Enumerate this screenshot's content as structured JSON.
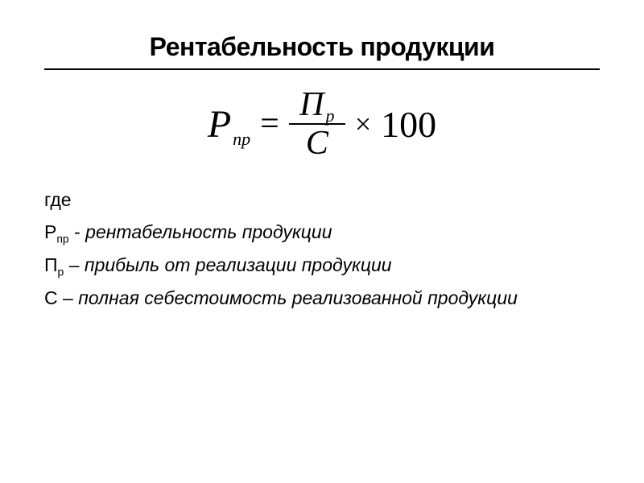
{
  "title": "Рентабельность продукции",
  "formula": {
    "result_var": "Р",
    "result_sub": "пр",
    "equals": "=",
    "numerator_var": "П",
    "numerator_sub": "р",
    "denominator_var": "С",
    "times": "×",
    "constant": "100"
  },
  "definitions": {
    "where": "где",
    "line1_sym": "Р",
    "line1_sub": "пр",
    "line1_sep": " - ",
    "line1_text": "рентабельность продукции",
    "line2_sym": "П",
    "line2_sub": "р",
    "line2_sep": " – ",
    "line2_text": "прибыль от реализации продукции",
    "line3_sym": "С",
    "line3_sep": " – ",
    "line3_text": "полная себестоимость реализованной продукции"
  },
  "colors": {
    "text": "#000000",
    "background": "#ffffff",
    "rule": "#000000"
  },
  "typography": {
    "title_fontsize": 32,
    "formula_fontsize": 48,
    "body_fontsize": 23,
    "title_weight": "bold",
    "body_family": "Verdana",
    "formula_family": "Times New Roman",
    "formula_style": "italic"
  }
}
